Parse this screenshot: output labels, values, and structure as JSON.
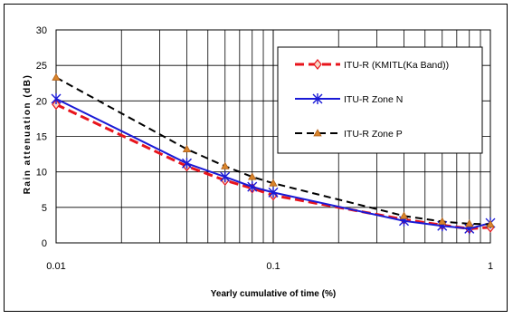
{
  "chart_data": {
    "type": "line",
    "xscale": "log",
    "xlim": [
      0.01,
      1
    ],
    "ylim": [
      0,
      30
    ],
    "xticks": [
      {
        "value": 0.01,
        "label": "0.01"
      },
      {
        "value": 0.1,
        "label": "0.1"
      },
      {
        "value": 1,
        "label": "1"
      }
    ],
    "yticks": [
      {
        "value": 0,
        "label": "0"
      },
      {
        "value": 5,
        "label": "5"
      },
      {
        "value": 10,
        "label": "10"
      },
      {
        "value": 15,
        "label": "15"
      },
      {
        "value": 20,
        "label": "20"
      },
      {
        "value": 25,
        "label": "25"
      },
      {
        "value": 30,
        "label": "30"
      }
    ],
    "xlabel": "Yearly cumulative of time  (%)",
    "ylabel": "Rain attenuation (dB)",
    "grid": "vertical and horizontal",
    "legend_position": "top-right",
    "x": [
      0.01,
      0.04,
      0.06,
      0.08,
      0.1,
      0.4,
      0.6,
      0.8,
      1
    ],
    "series": [
      {
        "name": "ITU-R (KMITL(Ka Band))",
        "color": "#e8141c",
        "dash": "dashed",
        "marker": "diamond",
        "values": [
          19.5,
          10.8,
          8.8,
          7.7,
          6.7,
          3.3,
          2.5,
          2.0,
          2.2
        ]
      },
      {
        "name": "ITU-R Zone N",
        "color": "#1a1ad6",
        "dash": "solid",
        "marker": "asterisk",
        "values": [
          20.3,
          11.2,
          9.3,
          7.9,
          7.1,
          3.1,
          2.4,
          2.0,
          2.8
        ]
      },
      {
        "name": "ITU-R Zone P",
        "color": "#000000",
        "dash": "dashed",
        "marker": "triangle",
        "values": [
          23.3,
          13.2,
          10.8,
          9.3,
          8.4,
          3.8,
          3.0,
          2.7,
          2.6
        ]
      }
    ]
  }
}
